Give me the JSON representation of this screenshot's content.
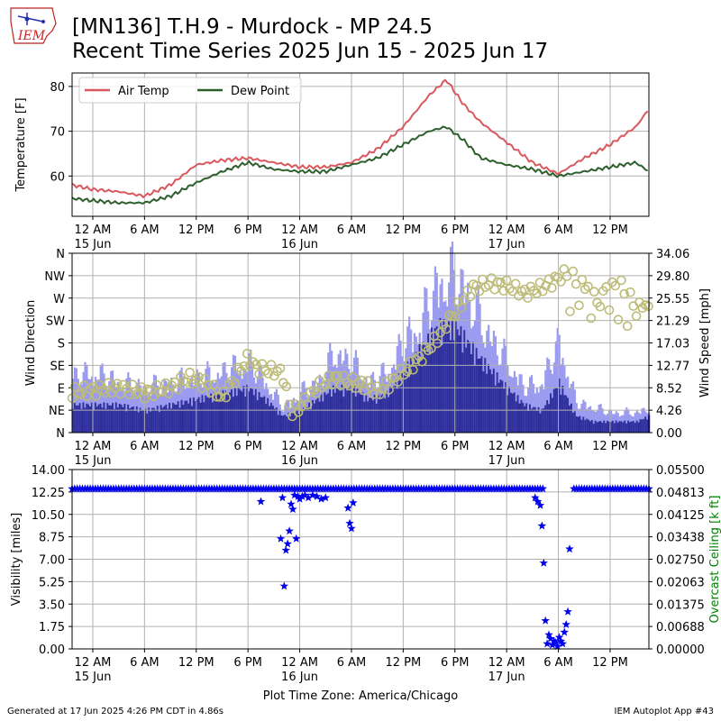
{
  "header": {
    "title_line1": "[MN136] T.H.9 - Murdock - MP 24.5",
    "title_line2": "Recent Time Series 2025 Jun 15 - 2025 Jun 17",
    "logo_text": "IEM"
  },
  "footer": {
    "left": "Generated at 17 Jun 2025 4:26 PM CDT in 4.86s",
    "right": "IEM Autoplot App #43"
  },
  "colors": {
    "air_temp": "#d9585e",
    "dew_point": "#2d5f2d",
    "wind_speed_light": "#9b9bf0",
    "wind_speed_dark": "#2f2f9c",
    "wind_dir_marker": "#bcbc78",
    "visibility": "#0000ee",
    "ceiling_label": "#008000",
    "grid": "#b0b0b0"
  },
  "x_axis": {
    "tick_labels": [
      "12 AM",
      "6 AM",
      "12 PM",
      "6 PM",
      "12 AM",
      "6 AM",
      "12 PM",
      "6 PM",
      "12 AM",
      "6 AM",
      "12 PM"
    ],
    "tick_hours": [
      0,
      6,
      12,
      18,
      24,
      30,
      36,
      42,
      48,
      54,
      60
    ],
    "date_labels": [
      {
        "hour": 0,
        "text": "15 Jun"
      },
      {
        "hour": 24,
        "text": "16 Jun"
      },
      {
        "hour": 48,
        "text": "17 Jun"
      }
    ],
    "range_hours": [
      -2.4,
      64.5
    ],
    "xlabel": "Plot Time Zone: America/Chicago"
  },
  "chart_data": [
    {
      "type": "line",
      "ylabel": "Temperature [F]",
      "ylim": [
        51,
        83
      ],
      "yticks": [
        60,
        70,
        80
      ],
      "grid": true,
      "legend": "top-left",
      "series": [
        {
          "name": "Air Temp",
          "x": [
            -2.4,
            0,
            3,
            6,
            9,
            12,
            15,
            18,
            21,
            24,
            27,
            30,
            33,
            36,
            39,
            41,
            43,
            45,
            48,
            51,
            54,
            57,
            60,
            63,
            64.5
          ],
          "y": [
            58,
            57,
            56.5,
            55.5,
            58,
            62.5,
            63.5,
            64,
            63,
            62,
            62,
            63,
            66,
            71,
            78,
            81.5,
            76,
            72,
            67.5,
            63,
            60.5,
            64,
            67,
            71,
            75
          ]
        },
        {
          "name": "Dew Point",
          "x": [
            -2.4,
            0,
            3,
            6,
            9,
            12,
            15,
            18,
            21,
            24,
            27,
            30,
            33,
            36,
            39,
            41,
            43,
            45,
            48,
            51,
            54,
            57,
            60,
            63,
            64.5
          ],
          "y": [
            55,
            54.5,
            54,
            54,
            55.5,
            58.5,
            61,
            63,
            61.5,
            61,
            61,
            62.5,
            64,
            67,
            70,
            71,
            68,
            64,
            62.5,
            61.5,
            60,
            61,
            62,
            63,
            61
          ]
        }
      ]
    },
    {
      "type": "area",
      "ylabel": "Wind Direction",
      "ylabel_right": "Wind Speed [mph]",
      "yticks_left": [
        "N",
        "NE",
        "E",
        "SE",
        "S",
        "SW",
        "W",
        "NW",
        "N"
      ],
      "yticks_right": [
        "0.00",
        "4.26",
        "8.52",
        "12.77",
        "17.03",
        "21.29",
        "25.55",
        "29.80",
        "34.06"
      ],
      "ylim_speed": [
        0,
        34.06
      ],
      "ylim_direction": [
        0,
        360
      ],
      "grid": true,
      "series": [
        {
          "name": "",
          "x": [
            -2.4,
            0,
            3,
            6,
            9,
            12,
            15,
            18,
            20,
            22,
            24,
            26,
            28,
            30,
            32,
            34,
            36,
            38,
            40,
            42,
            43,
            45,
            48,
            50,
            52,
            54,
            56,
            58,
            60,
            63,
            64.5
          ],
          "gust": [
            11,
            12,
            10,
            9,
            10,
            11,
            12,
            14,
            10,
            5,
            8,
            10,
            16,
            14,
            10,
            12,
            18,
            22,
            30,
            31,
            29,
            22,
            14,
            9,
            10,
            18,
            6,
            5,
            4,
            4,
            5
          ],
          "sustained": [
            5,
            5,
            5,
            4,
            5,
            6,
            7,
            8,
            6,
            3,
            4,
            6,
            8,
            8,
            6,
            7,
            11,
            15,
            19,
            19,
            17,
            13,
            8,
            5,
            4,
            9,
            3,
            2,
            2,
            2,
            3
          ]
        },
        {
          "name": "",
          "x": [
            -2.4,
            0,
            3,
            6,
            9,
            11,
            13,
            15,
            18,
            19,
            22,
            23,
            24,
            26,
            28,
            30,
            32,
            33,
            36,
            38,
            40,
            41,
            42,
            44,
            46,
            48,
            50,
            52,
            54,
            55,
            57,
            59,
            61,
            63
          ],
          "dir": [
            80,
            85,
            90,
            80,
            90,
            110,
            100,
            70,
            150,
            130,
            120,
            40,
            50,
            90,
            110,
            100,
            95,
            80,
            120,
            150,
            190,
            220,
            240,
            290,
            300,
            295,
            280,
            290,
            310,
            320,
            300,
            280,
            300,
            260
          ]
        }
      ]
    },
    {
      "type": "scatter",
      "ylabel": "Visibility [miles]",
      "ylabel_right": "Overcast Ceiling [k ft]",
      "ylim": [
        0,
        14
      ],
      "yticks": [
        "0.00",
        "1.75",
        "3.50",
        "5.25",
        "7.00",
        "8.75",
        "10.50",
        "12.25",
        "14.00"
      ],
      "yticks_right": [
        "0.00000",
        "0.00688",
        "0.01375",
        "0.02063",
        "0.02750",
        "0.03438",
        "0.04125",
        "0.04813",
        "0.05500"
      ],
      "grid": true,
      "series": [
        {
          "name": "",
          "x": [
            19.5,
            21.8,
            22,
            22.2,
            22.4,
            22.6,
            22.8,
            23,
            23.2,
            23.4,
            23.6,
            23.8,
            24,
            24.3,
            24.6,
            25,
            25.5,
            26,
            26.5,
            27,
            29.6,
            29.8,
            30,
            30.2,
            51.3,
            51.6,
            51.9,
            52.1,
            52.3,
            52.5,
            52.7,
            52.9,
            53.1,
            53.3,
            53.5,
            53.7,
            53.9,
            54.1,
            54.3,
            54.5,
            54.7,
            54.9,
            55.1,
            55.3
          ],
          "y": [
            11.5,
            8.6,
            11.8,
            4.9,
            7.7,
            8.2,
            9.2,
            11.3,
            10.9,
            12,
            8.6,
            11.9,
            11.7,
            11.9,
            12,
            11.8,
            12,
            11.9,
            11.7,
            11.8,
            11,
            9.8,
            9.4,
            11.4,
            11.8,
            11.5,
            11.2,
            9.6,
            6.7,
            2.2,
            0.4,
            1.1,
            0.8,
            0.3,
            0.6,
            0.5,
            0.2,
            0.9,
            0.6,
            0.4,
            1.3,
            1.9,
            2.9,
            7.8
          ]
        }
      ]
    }
  ]
}
